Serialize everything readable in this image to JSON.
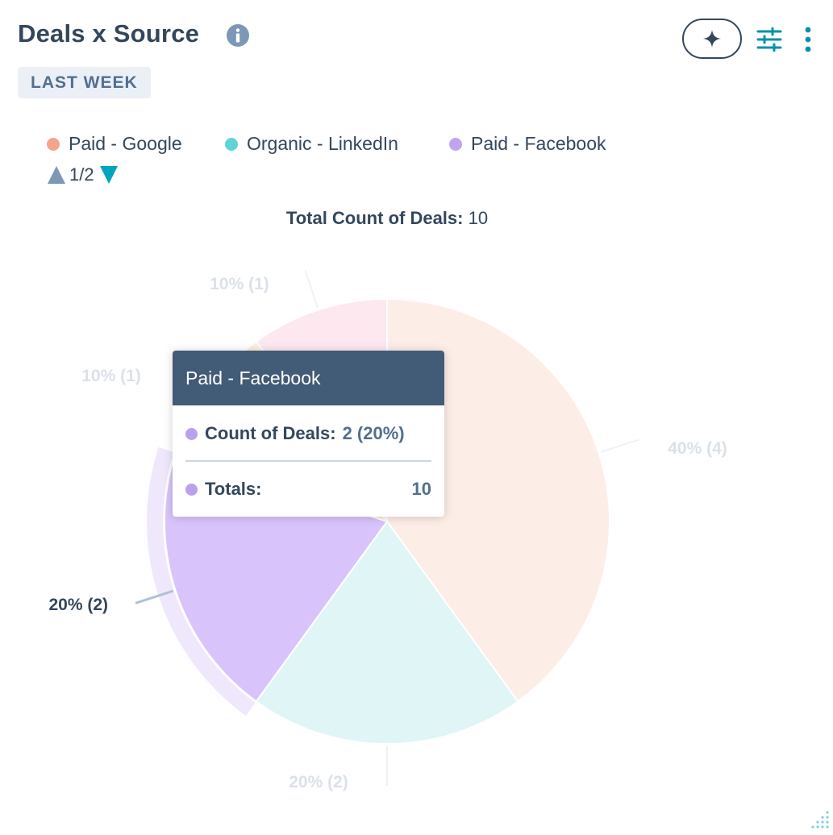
{
  "header": {
    "title": "Deals x Source",
    "date_badge": "LAST WEEK"
  },
  "icons": {
    "info": "info-icon",
    "ai": "sparkle-icon",
    "filter": "sliders-icon",
    "more": "vertical-ellipsis-icon"
  },
  "legend": {
    "items": [
      {
        "label": "Paid - Google",
        "color": "#f5a48b"
      },
      {
        "label": "Organic - LinkedIn",
        "color": "#5fd3d8"
      },
      {
        "label": "Paid - Facebook",
        "color": "#bfa4f1"
      }
    ],
    "page": "1/2"
  },
  "total": {
    "label": "Total Count of Deals:",
    "value": "10"
  },
  "chart_data": {
    "type": "pie",
    "title": "",
    "slices": [
      {
        "name": "Paid - Google",
        "value": 4,
        "label": "40% (4)",
        "color": "#fdede7"
      },
      {
        "name": "Organic - LinkedIn",
        "value": 2,
        "label": "20% (2)",
        "color": "#dff5f6"
      },
      {
        "name": "Paid - Facebook",
        "value": 2,
        "label": "20% (2)",
        "color": "#d8c4fb",
        "highlighted": true
      },
      {
        "name": "",
        "value": 1,
        "label": "10% (1)",
        "color": "#fdeedc"
      },
      {
        "name": "",
        "value": 1,
        "label": "10% (1)",
        "color": "#fce8ee"
      }
    ],
    "start_angle_deg": 0,
    "direction": "clockwise"
  },
  "tooltip": {
    "title": "Paid - Facebook",
    "rows": [
      {
        "label": "Count of Deals:",
        "value": "2 (20%)"
      },
      {
        "label": "Totals:",
        "value": "10"
      }
    ]
  }
}
